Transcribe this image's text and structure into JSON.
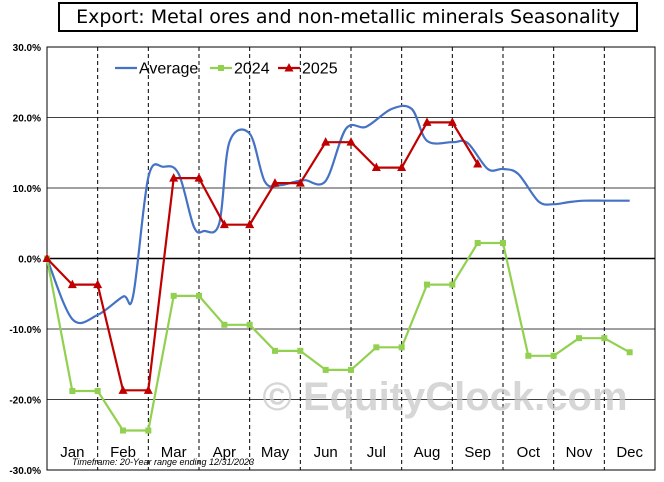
{
  "chart_data": {
    "type": "line",
    "title": "Export: Metal ores and non-metallic minerals Seasonality",
    "footnote": "Timeframe: 20-Year range ending 12/31/2023",
    "watermark": "© EquityClock.com",
    "ylim": [
      -30,
      30
    ],
    "y_ticks": [
      "30.0%",
      "20.0%",
      "10.0%",
      "0.0%",
      "-10.0%",
      "-20.0%",
      "-30.0%"
    ],
    "y_tick_values": [
      30,
      20,
      10,
      0,
      -10,
      -20,
      -30
    ],
    "x_tick_labels": [
      "Jan",
      "Feb",
      "Mar",
      "Apr",
      "May",
      "Jun",
      "Jul",
      "Aug",
      "Sep",
      "Oct",
      "Nov",
      "Dec"
    ],
    "legend_position": "top-left",
    "grid": true,
    "series": [
      {
        "name": "Average",
        "color": "#4472C4",
        "marker": "none",
        "smooth": true,
        "x": [
          0,
          0.5,
          1.0,
          1.5,
          1.7,
          2.0,
          2.3,
          2.6,
          2.9,
          3.1,
          3.4,
          3.6,
          4.0,
          4.3,
          4.6,
          4.9,
          5.1,
          5.5,
          5.9,
          6.3,
          6.8,
          7.2,
          7.5,
          8.0,
          8.3,
          8.7,
          9.0,
          9.3,
          9.7,
          10.0,
          10.3,
          10.6,
          11.0,
          11.3,
          11.5
        ],
        "y": [
          0,
          -8.6,
          -8.0,
          -5.4,
          -5.3,
          11.5,
          13.0,
          12.0,
          4.5,
          3.9,
          5.0,
          16.5,
          17.7,
          10.9,
          10.4,
          10.9,
          11.1,
          11.0,
          18.4,
          18.7,
          21.2,
          21.2,
          16.7,
          16.5,
          16.4,
          12.7,
          12.7,
          12.0,
          8.1,
          7.7,
          8.0,
          8.2,
          8.2,
          8.2,
          8.2
        ]
      },
      {
        "name": "2024",
        "color": "#92D050",
        "marker": "square",
        "smooth": false,
        "x": [
          0,
          0.5,
          1.0,
          1.5,
          2.0,
          2.5,
          3.0,
          3.5,
          4.0,
          4.5,
          5.0,
          5.5,
          6.0,
          6.5,
          7.0,
          7.5,
          8.0,
          8.5,
          9.0,
          9.5,
          10.0,
          10.5,
          11.0,
          11.5
        ],
        "y": [
          0,
          -18.8,
          -18.8,
          -24.4,
          -24.4,
          -5.3,
          -5.3,
          -9.4,
          -9.4,
          -13.1,
          -13.1,
          -15.8,
          -15.8,
          -12.6,
          -12.6,
          -3.7,
          -3.7,
          2.2,
          2.2,
          -13.8,
          -13.8,
          -11.3,
          -11.3,
          -13.3
        ]
      },
      {
        "name": "2025",
        "color": "#C00000",
        "marker": "triangle",
        "smooth": false,
        "x": [
          0,
          0.5,
          1.0,
          1.5,
          2.0,
          2.5,
          3.0,
          3.5,
          4.0,
          4.5,
          5.0,
          5.5,
          6.0,
          6.5,
          7.0,
          7.5,
          8.0,
          8.5
        ],
        "y": [
          0,
          -3.7,
          -3.7,
          -18.7,
          -18.7,
          11.4,
          11.4,
          4.8,
          4.8,
          10.7,
          10.7,
          16.5,
          16.5,
          12.9,
          12.9,
          19.3,
          19.3,
          13.4
        ]
      }
    ]
  }
}
